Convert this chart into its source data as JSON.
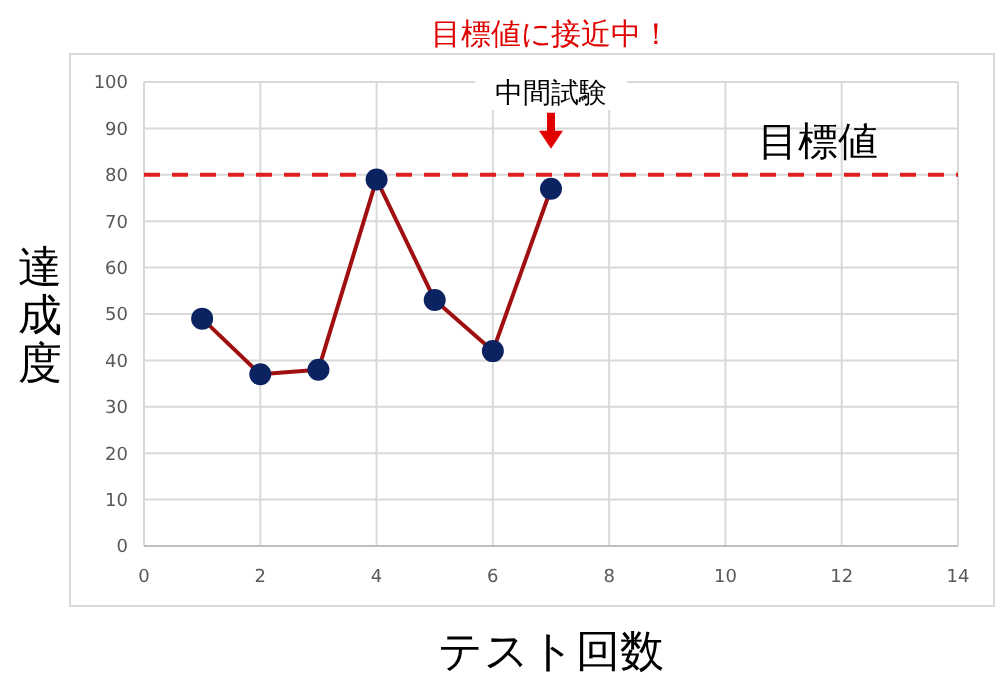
{
  "chart_data": {
    "type": "line",
    "title": "目標値に接近中！",
    "xlabel": "テスト回数",
    "ylabel": "達成度",
    "x": [
      1,
      2,
      3,
      4,
      5,
      6,
      7
    ],
    "series": [
      {
        "color": "#a01010",
        "values": [
          49,
          37,
          38,
          79,
          53,
          42,
          77
        ]
      }
    ],
    "xlim": [
      0,
      14
    ],
    "xticks": [
      0,
      2,
      4,
      6,
      8,
      10,
      12,
      14
    ],
    "ylim": [
      0,
      100
    ],
    "yticks": [
      0,
      10,
      20,
      30,
      40,
      50,
      60,
      70,
      80,
      90,
      100
    ],
    "grid": true,
    "marker": "circle",
    "line_style": "solid",
    "ref_lines": [
      {
        "axis": "y",
        "value": 80,
        "label": "目標値",
        "color": "#e02020",
        "line_style": "dashed"
      }
    ],
    "annotations": [
      {
        "text": "中間試験",
        "x": 7,
        "y": 77
      }
    ]
  }
}
